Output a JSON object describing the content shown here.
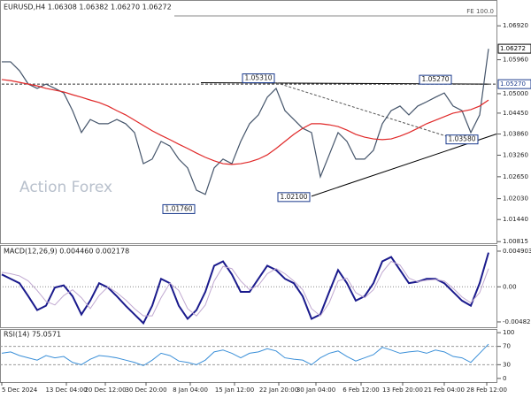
{
  "chart_data": [
    {
      "type": "line",
      "title": "EURUSD,H4 1.06308 1.06382 1.06270 1.06272",
      "watermark": "Action Forex",
      "ylim": [
        1.0077,
        1.0765
      ],
      "yticks": [
        {
          "value": 1.0692,
          "label": "1.06920"
        },
        {
          "value": 1.0596,
          "label": "1.05960"
        },
        {
          "value": 1.05,
          "label": "1.05000"
        },
        {
          "value": 1.0445,
          "label": "1.04450"
        },
        {
          "value": 1.0386,
          "label": "1.03860"
        },
        {
          "value": 1.0326,
          "label": "1.03260"
        },
        {
          "value": 1.0265,
          "label": "1.02650"
        },
        {
          "value": 1.0203,
          "label": "1.02030"
        },
        {
          "value": 1.0144,
          "label": "1.01440"
        },
        {
          "value": 1.00815,
          "label": "1.00815"
        }
      ],
      "series": [
        {
          "color": "#44546a",
          "values": [
            1.059,
            1.059,
            1.0565,
            1.0527,
            1.0515,
            1.0527,
            1.0515,
            1.0502,
            1.0452,
            1.039,
            1.0427,
            1.0415,
            1.0415,
            1.0427,
            1.0415,
            1.039,
            1.0302,
            1.0315,
            1.0365,
            1.0352,
            1.0315,
            1.029,
            1.0227,
            1.0215,
            1.029,
            1.0315,
            1.0302,
            1.0365,
            1.0415,
            1.044,
            1.049,
            1.0515,
            1.0452,
            1.0427,
            1.0402,
            1.039,
            1.0265,
            1.0327,
            1.039,
            1.0365,
            1.0315,
            1.0315,
            1.034,
            1.0415,
            1.0452,
            1.0465,
            1.044,
            1.0465,
            1.0477,
            1.049,
            1.0502,
            1.0465,
            1.0452,
            1.039,
            1.044,
            1.0627
          ]
        },
        {
          "color": "#e02828",
          "values": [
            1.054,
            1.0537,
            1.0532,
            1.0527,
            1.0522,
            1.0515,
            1.051,
            1.0505,
            1.0497,
            1.049,
            1.0482,
            1.0475,
            1.0465,
            1.0452,
            1.044,
            1.0425,
            1.041,
            1.0395,
            1.0382,
            1.037,
            1.0357,
            1.0345,
            1.0332,
            1.032,
            1.031,
            1.0302,
            1.03,
            1.0302,
            1.0307,
            1.0315,
            1.0327,
            1.0345,
            1.0365,
            1.0385,
            1.0402,
            1.0415,
            1.0415,
            1.0412,
            1.0407,
            1.0397,
            1.0385,
            1.0377,
            1.0372,
            1.037,
            1.0372,
            1.038,
            1.039,
            1.0402,
            1.0415,
            1.0425,
            1.0435,
            1.0445,
            1.045,
            1.0455,
            1.0465,
            1.0482
          ]
        }
      ],
      "lines": [
        {
          "points": [
            [
              0,
              1.0527
            ],
            [
              56,
              1.0527
            ]
          ],
          "color": "#333",
          "dash": true
        },
        {
          "points": [
            [
              22.5,
              1.0531
            ],
            [
              55,
              1.0527
            ]
          ],
          "color": "#000",
          "dash": false
        },
        {
          "points": [
            [
              31,
              1.0531
            ],
            [
              53,
              1.0358
            ]
          ],
          "color": "#555",
          "dash": true
        },
        {
          "points": [
            [
              35,
              1.021
            ],
            [
              56,
              1.0386
            ]
          ],
          "color": "#000",
          "dash": false
        },
        {
          "points": [
            [
              19.5,
              1.072
            ],
            [
              56,
              1.072
            ]
          ],
          "color": "#888",
          "dash": false
        }
      ],
      "fe_label": "FE 100.0",
      "annotations": [
        {
          "text": "1.01760",
          "value": 1.0176,
          "index": 20
        },
        {
          "text": "1.05310",
          "value": 1.0531,
          "index": 29
        },
        {
          "text": "1.02100",
          "value": 1.021,
          "index": 33
        },
        {
          "text": "1.03580",
          "value": 1.0358,
          "index": 52
        },
        {
          "text": "1.05270",
          "value": 1.0527,
          "index": 49
        }
      ],
      "price_labels": [
        {
          "value": 1.06272,
          "label": "1.06272",
          "color": "#000000"
        },
        {
          "value": 1.0527,
          "label": "1.05270",
          "color": "#1a3a8c"
        }
      ]
    },
    {
      "type": "line",
      "title": "MACD(12,26,9) 0.004460 0.002178",
      "ylim": [
        -0.00556,
        0.00575
      ],
      "yticks": [
        0.004903,
        {
          "value": 0,
          "label": "0.00"
        },
        -0.004827
      ],
      "series": [
        {
          "color": "#1a1a8c",
          "width": 2,
          "values": [
            0.0017,
            0.0011,
            0.0005,
            -0.0013,
            -0.0032,
            -0.0026,
            -0.0001,
            0.0002,
            -0.0013,
            -0.0038,
            -0.0019,
            0.0005,
            -0.0001,
            -0.0013,
            -0.0026,
            -0.0038,
            -0.005,
            -0.0026,
            0.0011,
            0.0005,
            -0.0026,
            -0.0044,
            -0.0032,
            -0.0007,
            0.0029,
            0.0035,
            0.0017,
            -0.0007,
            -0.0007,
            0.0011,
            0.0029,
            0.0023,
            0.0011,
            0.0005,
            -0.0013,
            -0.0044,
            -0.0038,
            -0.0007,
            0.0023,
            0.0005,
            -0.0019,
            -0.0013,
            0.0005,
            0.0035,
            0.0041,
            0.0023,
            0.0005,
            0.0007,
            0.0011,
            0.0011,
            0.0005,
            -0.0007,
            -0.0019,
            -0.0026,
            0.0005,
            0.0047
          ]
        },
        {
          "color": "#c0a8d0",
          "width": 1,
          "values": [
            0.002,
            0.0018,
            0.0015,
            0.0008,
            -0.0005,
            -0.002,
            -0.0025,
            -0.0012,
            -0.0004,
            -0.0015,
            -0.003,
            -0.0012,
            0.0,
            -0.0008,
            -0.0018,
            -0.003,
            -0.004,
            -0.004,
            -0.0015,
            0.0005,
            -0.0005,
            -0.003,
            -0.004,
            -0.0025,
            0.0008,
            0.0028,
            0.0025,
            0.0008,
            -0.0004,
            0.0002,
            0.0018,
            0.0025,
            0.0018,
            0.0008,
            -0.0004,
            -0.003,
            -0.004,
            -0.0022,
            0.0008,
            0.0012,
            -0.0008,
            -0.0015,
            -0.0004,
            0.002,
            0.0035,
            0.003,
            0.0012,
            0.0007,
            0.0009,
            0.001,
            0.0008,
            -0.0002,
            -0.0014,
            -0.0022,
            -0.0008,
            0.0025
          ]
        }
      ]
    },
    {
      "type": "line",
      "title": "RSI(14) 75.0571",
      "ylim": [
        -8,
        108
      ],
      "yticks": [
        100,
        70,
        30,
        0
      ],
      "levels": [
        70,
        30
      ],
      "series": [
        {
          "color": "#3a8fd8",
          "width": 1,
          "values": [
            55,
            58,
            50,
            45,
            40,
            50,
            45,
            48,
            35,
            30,
            42,
            50,
            48,
            45,
            40,
            35,
            28,
            40,
            55,
            50,
            38,
            35,
            30,
            40,
            58,
            62,
            55,
            45,
            55,
            58,
            65,
            60,
            45,
            42,
            40,
            30,
            45,
            55,
            60,
            48,
            38,
            45,
            52,
            68,
            62,
            55,
            58,
            60,
            55,
            62,
            58,
            48,
            45,
            35,
            55,
            75
          ]
        }
      ],
      "xticks": [
        {
          "value": 0,
          "label": "5 Dec 2024"
        },
        {
          "value": 7.3,
          "label": "13 Dec 04:00"
        },
        {
          "value": 11.7,
          "label": "20 Dec 12:00"
        },
        {
          "value": 16.3,
          "label": "30 Dec 20:00"
        },
        {
          "value": 21.3,
          "label": "8 Jan 04:00"
        },
        {
          "value": 26.3,
          "label": "15 Jan 12:00"
        },
        {
          "value": 31.3,
          "label": "22 Jan 20:00"
        },
        {
          "value": 35.5,
          "label": "30 Jan 04:00"
        },
        {
          "value": 40.6,
          "label": "6 Feb 12:00"
        },
        {
          "value": 45.3,
          "label": "13 Feb 20:00"
        },
        {
          "value": 50,
          "label": "21 Feb 04:00"
        },
        {
          "value": 54.8,
          "label": "28 Feb 12:00"
        }
      ]
    }
  ]
}
